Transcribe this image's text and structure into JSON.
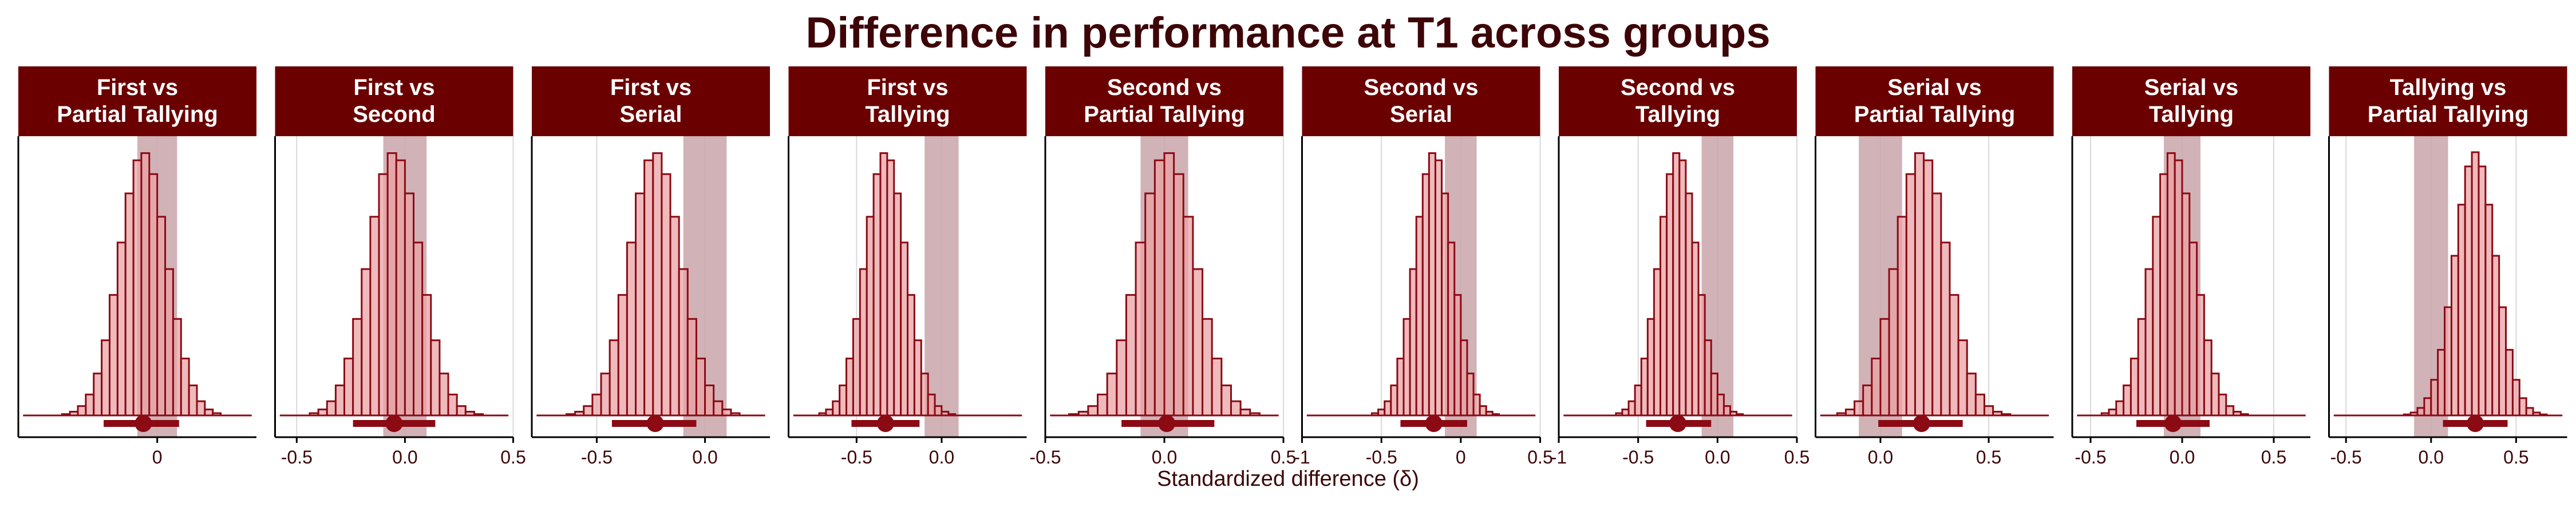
{
  "title": "Difference in performance at T1 across groups",
  "xlabel": "Standardized difference (δ)",
  "colors": {
    "strip": "#6b0000",
    "bar_fill": "#e8a3a6",
    "bar_stroke": "#8b0a14",
    "rope": "#c9a4aa",
    "point": "#8b0a14",
    "text": "#3d0508",
    "grid": "#d9d9d9"
  },
  "chart_data": [
    {
      "type": "histogram",
      "title_line1": "First vs",
      "title_line2": "Partial Tallying",
      "xlim": [
        -0.7,
        0.5
      ],
      "ticks": [
        0
      ],
      "tick_labels": [
        "0"
      ],
      "rope": [
        -0.1,
        0.1
      ],
      "mean": -0.07,
      "sd": 0.12,
      "point": -0.07,
      "interval": [
        -0.27,
        0.11
      ]
    },
    {
      "type": "histogram",
      "title_line1": "First vs",
      "title_line2": "Second",
      "xlim": [
        -0.6,
        0.5
      ],
      "ticks": [
        -0.5,
        0,
        0.5
      ],
      "tick_labels": [
        "-0.5",
        "0.0",
        "0.5"
      ],
      "rope": [
        -0.1,
        0.1
      ],
      "mean": -0.05,
      "sd": 0.12,
      "point": -0.05,
      "interval": [
        -0.24,
        0.14
      ]
    },
    {
      "type": "histogram",
      "title_line1": "First vs",
      "title_line2": "Serial",
      "xlim": [
        -0.8,
        0.3
      ],
      "ticks": [
        -0.5,
        0
      ],
      "tick_labels": [
        "-0.5",
        "0.0"
      ],
      "rope": [
        -0.1,
        0.1
      ],
      "mean": -0.23,
      "sd": 0.12,
      "point": -0.23,
      "interval": [
        -0.43,
        -0.04
      ]
    },
    {
      "type": "histogram",
      "title_line1": "First vs",
      "title_line2": "Tallying",
      "xlim": [
        -0.9,
        0.5
      ],
      "ticks": [
        -0.5,
        0
      ],
      "tick_labels": [
        "-0.5",
        "0.0"
      ],
      "rope": [
        -0.1,
        0.1
      ],
      "mean": -0.33,
      "sd": 0.12,
      "point": -0.33,
      "interval": [
        -0.53,
        -0.13
      ]
    },
    {
      "type": "histogram",
      "title_line1": "Second vs",
      "title_line2": "Partial Tallying",
      "xlim": [
        -0.5,
        0.5
      ],
      "ticks": [
        -0.5,
        0,
        0.5
      ],
      "tick_labels": [
        "-0.5",
        "0.0",
        "0.5"
      ],
      "rope": [
        -0.1,
        0.1
      ],
      "mean": 0.01,
      "sd": 0.12,
      "point": 0.01,
      "interval": [
        -0.18,
        0.21
      ]
    },
    {
      "type": "histogram",
      "title_line1": "Second vs",
      "title_line2": "Serial",
      "xlim": [
        -1.0,
        0.5
      ],
      "ticks": [
        -1,
        -0.5,
        0,
        0.5
      ],
      "tick_labels": [
        "-1",
        "-0.5",
        "0",
        "0.5"
      ],
      "rope": [
        -0.1,
        0.1
      ],
      "mean": -0.17,
      "sd": 0.12,
      "point": -0.17,
      "interval": [
        -0.38,
        0.04
      ]
    },
    {
      "type": "histogram",
      "title_line1": "Second vs",
      "title_line2": "Tallying",
      "xlim": [
        -1.0,
        0.5
      ],
      "ticks": [
        -1,
        -0.5,
        0,
        0.5
      ],
      "tick_labels": [
        "-1",
        "-0.5",
        "0.0",
        "0.5"
      ],
      "rope": [
        -0.1,
        0.1
      ],
      "mean": -0.25,
      "sd": 0.12,
      "point": -0.25,
      "interval": [
        -0.45,
        -0.04
      ]
    },
    {
      "type": "histogram",
      "title_line1": "Serial vs",
      "title_line2": "Partial Tallying",
      "xlim": [
        -0.3,
        0.8
      ],
      "ticks": [
        0,
        0.5
      ],
      "tick_labels": [
        "0.0",
        "0.5"
      ],
      "rope": [
        -0.1,
        0.1
      ],
      "mean": 0.19,
      "sd": 0.12,
      "point": 0.19,
      "interval": [
        -0.01,
        0.38
      ]
    },
    {
      "type": "histogram",
      "title_line1": "Serial vs",
      "title_line2": "Tallying",
      "xlim": [
        -0.6,
        0.7
      ],
      "ticks": [
        -0.5,
        0,
        0.5
      ],
      "tick_labels": [
        "-0.5",
        "0.0",
        "0.5"
      ],
      "rope": [
        -0.1,
        0.1
      ],
      "mean": -0.05,
      "sd": 0.12,
      "point": -0.05,
      "interval": [
        -0.25,
        0.15
      ]
    },
    {
      "type": "histogram",
      "title_line1": "Tallying vs",
      "title_line2": "Partial Tallying",
      "xlim": [
        -0.6,
        0.8
      ],
      "ticks": [
        -0.5,
        0,
        0.5
      ],
      "tick_labels": [
        "-0.5",
        "0.0",
        "0.5"
      ],
      "rope": [
        -0.1,
        0.1
      ],
      "mean": 0.26,
      "sd": 0.12,
      "point": 0.26,
      "interval": [
        0.07,
        0.45
      ]
    }
  ]
}
